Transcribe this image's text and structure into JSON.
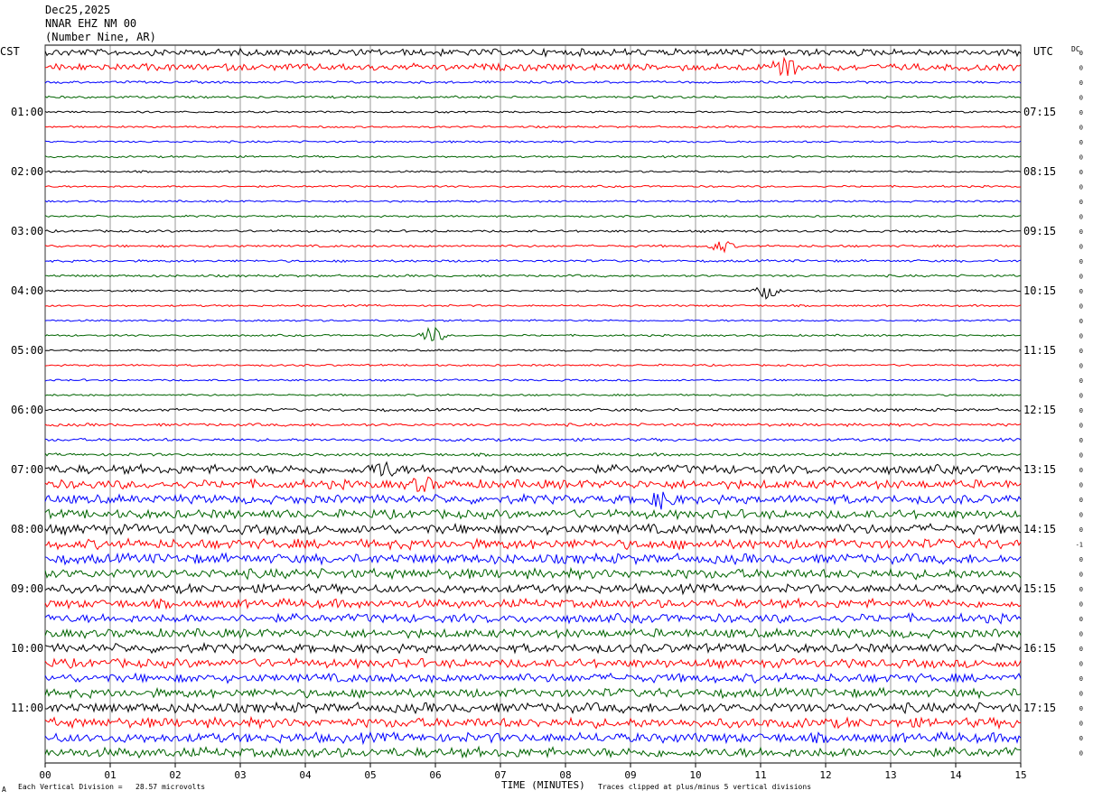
{
  "header": {
    "date": "Dec25,2025",
    "station": "NNAR EHZ NM 00",
    "location": "(Number Nine, AR)"
  },
  "left_zone": "CST",
  "right_zone": "UTC",
  "dc_label": "DC",
  "footer": {
    "corner_mark": "A",
    "scale_note": "Each Vertical Division =   28.57 microvolts",
    "clip_note": "Traces clipped at plus/minus 5 vertical divisions"
  },
  "colors": {
    "trace_cycle": [
      "#000000",
      "#ff0000",
      "#0000ff",
      "#006400"
    ],
    "grid": "#555555"
  },
  "chart_data": {
    "type": "line",
    "title": "",
    "xlabel": "TIME (MINUTES)",
    "ylabel": "",
    "xlim": [
      0,
      15
    ],
    "x_ticks": [
      "00",
      "01",
      "02",
      "03",
      "04",
      "05",
      "06",
      "07",
      "08",
      "09",
      "10",
      "11",
      "12",
      "13",
      "14",
      "15"
    ],
    "trace_count": 48,
    "trace_interval_minutes": 15,
    "left_hour_labels": [
      "01:00",
      "02:00",
      "03:00",
      "04:00",
      "05:00",
      "06:00",
      "07:00",
      "08:00",
      "09:00",
      "10:00",
      "11:00"
    ],
    "right_hour_labels": [
      "07:15",
      "08:15",
      "09:15",
      "10:15",
      "11:15",
      "12:15",
      "13:15",
      "14:15",
      "15:15",
      "16:15",
      "17:15"
    ],
    "dc_offsets": [
      "0",
      "0",
      "0",
      "0",
      "0",
      "0",
      "0",
      "0",
      "0",
      "0",
      "0",
      "0",
      "0",
      "0",
      "0",
      "0",
      "0",
      "0",
      "0",
      "0",
      "0",
      "0",
      "0",
      "0",
      "0",
      "0",
      "0",
      "0",
      "0",
      "0",
      "0",
      "0",
      "0",
      "-1",
      "0",
      "0",
      "0",
      "0",
      "0",
      "0",
      "0",
      "0",
      "0",
      "0",
      "0",
      "0",
      "0",
      "0"
    ],
    "amplitude_levels": [
      0.35,
      0.35,
      0.12,
      0.12,
      0.1,
      0.1,
      0.1,
      0.1,
      0.1,
      0.1,
      0.1,
      0.1,
      0.12,
      0.12,
      0.12,
      0.12,
      0.1,
      0.1,
      0.1,
      0.1,
      0.1,
      0.1,
      0.1,
      0.1,
      0.15,
      0.15,
      0.15,
      0.15,
      0.45,
      0.45,
      0.45,
      0.45,
      0.5,
      0.5,
      0.5,
      0.5,
      0.45,
      0.45,
      0.45,
      0.45,
      0.45,
      0.45,
      0.45,
      0.45,
      0.5,
      0.5,
      0.5,
      0.5
    ],
    "events": [
      {
        "trace": 1,
        "minute": 11.35,
        "amp": 3.0
      },
      {
        "trace": 13,
        "minute": 10.4,
        "amp": 1.2
      },
      {
        "trace": 16,
        "minute": 11.1,
        "amp": 1.5
      },
      {
        "trace": 19,
        "minute": 5.95,
        "amp": 1.8
      },
      {
        "trace": 28,
        "minute": 5.2,
        "amp": 1.5
      },
      {
        "trace": 29,
        "minute": 5.8,
        "amp": 1.2
      },
      {
        "trace": 30,
        "minute": 9.5,
        "amp": 1.5
      }
    ]
  }
}
